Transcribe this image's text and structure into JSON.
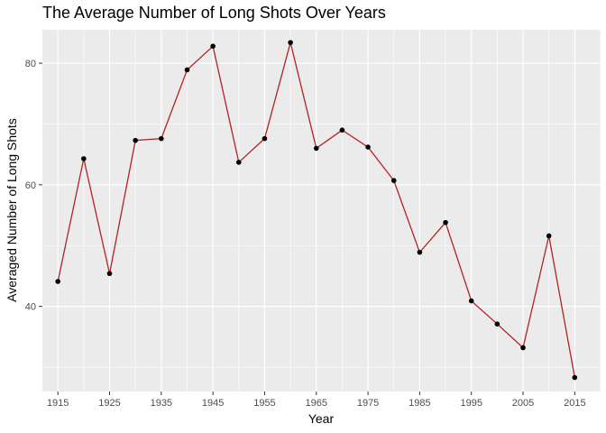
{
  "chart_data": {
    "type": "line",
    "title": "The Average Number of Long Shots Over Years",
    "xlabel": "Year",
    "ylabel": "Averaged Number of Long Shots",
    "x_ticks": [
      "1915",
      "1925",
      "1935",
      "1945",
      "1955",
      "1965",
      "1975",
      "1985",
      "1995",
      "2005",
      "2015"
    ],
    "y_ticks": [
      "40",
      "60",
      "80"
    ],
    "xlim": [
      1912,
      2020
    ],
    "ylim": [
      26,
      85.5
    ],
    "grid": true,
    "series": [
      {
        "x": [
          1915,
          1920,
          1925,
          1930,
          1935,
          1940,
          1945,
          1950,
          1955,
          1960,
          1965,
          1970,
          1975,
          1980,
          1985,
          1990,
          1995,
          2000,
          2005,
          2010,
          2015
        ],
        "values": [
          44.1,
          64.3,
          45.4,
          67.3,
          67.6,
          78.9,
          82.8,
          63.7,
          67.6,
          83.4,
          66.0,
          69.0,
          66.2,
          60.7,
          48.9,
          53.8,
          40.9,
          37.1,
          33.2,
          51.6,
          28.3
        ]
      }
    ],
    "colors": {
      "line": "#b22222",
      "point": "#000000",
      "panel": "#ebebeb",
      "grid": "#ffffff"
    }
  }
}
